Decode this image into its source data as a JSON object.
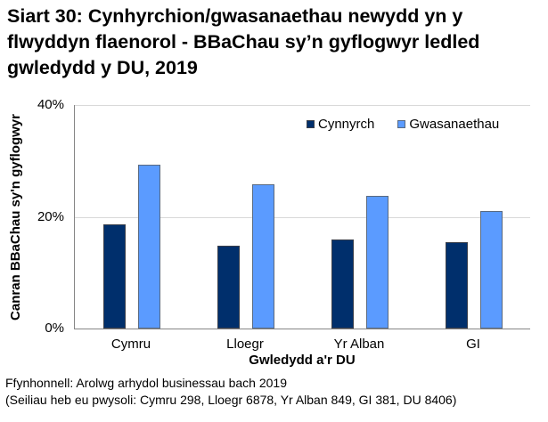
{
  "title": "Siart 30: Cynhyrchion/gwasanaethau newydd yn y flwyddyn flaenorol - BBaChau sy’n gyflogwyr ledled gwledydd y DU, 2019",
  "colors": {
    "cynnyrch": "#002f6c",
    "gwasanaethau": "#5b9bff"
  },
  "chart_data": {
    "type": "bar",
    "title": "Siart 30: Cynhyrchion/gwasanaethau newydd yn y flwyddyn flaenorol - BBaChau sy’n gyflogwyr ledled gwledydd y DU, 2019",
    "categories": [
      "Cymru",
      "Lloegr",
      "Yr Alban",
      "GI"
    ],
    "series": [
      {
        "name": "Cynnyrch",
        "values": [
          18.7,
          14.8,
          16.0,
          15.5
        ],
        "color": "#002f6c"
      },
      {
        "name": "Gwasanaethau",
        "values": [
          29.3,
          25.8,
          23.8,
          21.1
        ],
        "color": "#5b9bff"
      }
    ],
    "xlabel": "Gwledydd a'r DU",
    "ylabel": "Canran BBaChau sy'n gyflogwyr",
    "ylim": [
      0,
      40
    ],
    "yticks": [
      "0%",
      "20%",
      "40%"
    ],
    "grid": true,
    "legend_position": "top-right"
  },
  "legend": {
    "items": [
      "Cynnyrch",
      "Gwasanaethau"
    ]
  },
  "axes": {
    "y_ticks": [
      "40%",
      "20%",
      "0%"
    ],
    "y_label": "Canran BBaChau sy'n gyflogwyr",
    "x_label": "Gwledydd a'r DU",
    "x_ticks": [
      "Cymru",
      "Lloegr",
      "Yr Alban",
      "GI"
    ]
  },
  "footer": {
    "source": "Ffynhonnell: Arolwg arhydol businessau bach 2019",
    "bases": "(Seiliau heb eu pwysoli: Cymru 298, Lloegr 6878, Yr Alban 849, GI 381, DU 8406)"
  }
}
